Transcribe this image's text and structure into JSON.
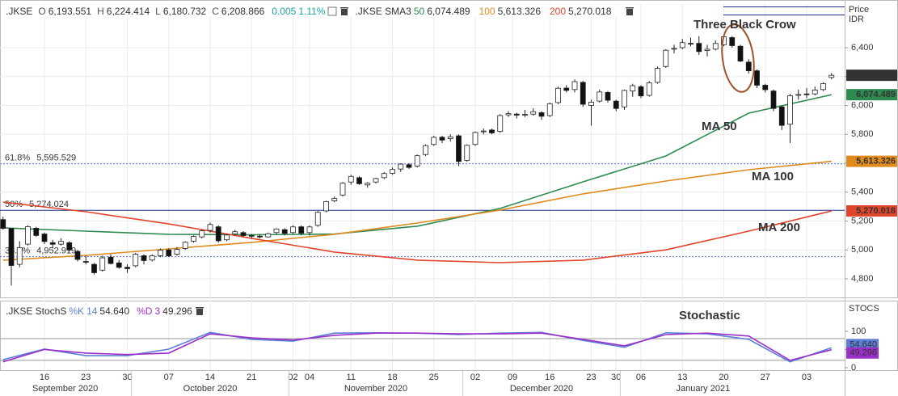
{
  "chart_data": [
    {
      "type": "candlestick",
      "legend": {
        "symbol": ".JKSE",
        "ohlc": [
          {
            "label": "O",
            "value": "6,193.551"
          },
          {
            "label": "H",
            "value": "6,224.414"
          },
          {
            "label": "L",
            "value": "6,180.732"
          },
          {
            "label": "C",
            "value": "6,208.866"
          }
        ],
        "change": "0.005",
        "change_pct": "1.11%",
        "sma_name": ".JKSE SMA3",
        "sma": [
          {
            "period": "50",
            "value": "6,074.489"
          },
          {
            "period": "100",
            "value": "5,613.326"
          },
          {
            "period": "200",
            "value": "5,270.018"
          }
        ]
      },
      "axis_title": [
        "Price",
        "IDR"
      ],
      "annotations": [
        "Three Black Crow"
      ],
      "categories": [
        "2020-09-09",
        "2020-09-10",
        "2020-09-11",
        "2020-09-14",
        "2020-09-15",
        "2020-09-16",
        "2020-09-17",
        "2020-09-18",
        "2020-09-21",
        "2020-09-22",
        "2020-09-23",
        "2020-09-24",
        "2020-09-25",
        "2020-09-28",
        "2020-09-29",
        "2020-09-30",
        "2020-10-01",
        "2020-10-02",
        "2020-10-05",
        "2020-10-06",
        "2020-10-07",
        "2020-10-08",
        "2020-10-09",
        "2020-10-12",
        "2020-10-13",
        "2020-10-14",
        "2020-10-15",
        "2020-10-16",
        "2020-10-19",
        "2020-10-20",
        "2020-10-21",
        "2020-10-22",
        "2020-10-23",
        "2020-10-26",
        "2020-10-27",
        "2020-11-02",
        "2020-11-03",
        "2020-11-04",
        "2020-11-05",
        "2020-11-06",
        "2020-11-09",
        "2020-11-10",
        "2020-11-11",
        "2020-11-12",
        "2020-11-13",
        "2020-11-16",
        "2020-11-17",
        "2020-11-18",
        "2020-11-19",
        "2020-11-20",
        "2020-11-23",
        "2020-11-24",
        "2020-11-25",
        "2020-11-26",
        "2020-11-27",
        "2020-11-30",
        "2020-12-01",
        "2020-12-02",
        "2020-12-03",
        "2020-12-04",
        "2020-12-07",
        "2020-12-08",
        "2020-12-10",
        "2020-12-11",
        "2020-12-14",
        "2020-12-15",
        "2020-12-16",
        "2020-12-17",
        "2020-12-18",
        "2020-12-21",
        "2020-12-22",
        "2020-12-23",
        "2020-12-28",
        "2020-12-29",
        "2020-12-30",
        "2021-01-04",
        "2021-01-05",
        "2021-01-06",
        "2021-01-07",
        "2021-01-08",
        "2021-01-11",
        "2021-01-12",
        "2021-01-13",
        "2021-01-14",
        "2021-01-15",
        "2021-01-18",
        "2021-01-19",
        "2021-01-20",
        "2021-01-21",
        "2021-01-22",
        "2021-01-25",
        "2021-01-26",
        "2021-01-27",
        "2021-01-28",
        "2021-01-29",
        "2021-02-01",
        "2021-02-02",
        "2021-02-03",
        "2021-02-04",
        "2021-02-05",
        "2021-02-08"
      ],
      "ohlc": [
        [
          5210,
          5230,
          5140,
          5149
        ],
        [
          5149,
          5150,
          4754,
          4892
        ],
        [
          4900,
          5060,
          4880,
          5016
        ],
        [
          5040,
          5170,
          5030,
          5161
        ],
        [
          5150,
          5160,
          5090,
          5100
        ],
        [
          5110,
          5120,
          5040,
          5058
        ],
        [
          5050,
          5070,
          5010,
          5039
        ],
        [
          5040,
          5080,
          5030,
          5059
        ],
        [
          5050,
          5060,
          4990,
          4999
        ],
        [
          4990,
          5000,
          4920,
          4934
        ],
        [
          4920,
          4960,
          4900,
          4917
        ],
        [
          4900,
          4910,
          4830,
          4842
        ],
        [
          4860,
          4960,
          4850,
          4945
        ],
        [
          4950,
          4970,
          4900,
          4906
        ],
        [
          4910,
          4930,
          4870,
          4879
        ],
        [
          4880,
          4900,
          4840,
          4870
        ],
        [
          4890,
          4980,
          4880,
          4970
        ],
        [
          4960,
          4970,
          4900,
          4926
        ],
        [
          4930,
          4970,
          4920,
          4959
        ],
        [
          4960,
          5010,
          4950,
          4999
        ],
        [
          5000,
          5010,
          4950,
          4958
        ],
        [
          4970,
          5020,
          4960,
          5004
        ],
        [
          5010,
          5060,
          5000,
          5053
        ],
        [
          5060,
          5100,
          5050,
          5093
        ],
        [
          5090,
          5140,
          5080,
          5132
        ],
        [
          5135,
          5190,
          5120,
          5176
        ],
        [
          5160,
          5170,
          5050,
          5063
        ],
        [
          5070,
          5110,
          5060,
          5103
        ],
        [
          5110,
          5140,
          5100,
          5126
        ],
        [
          5120,
          5130,
          5090,
          5099
        ],
        [
          5100,
          5110,
          5080,
          5096
        ],
        [
          5095,
          5110,
          5080,
          5091
        ],
        [
          5090,
          5120,
          5085,
          5112
        ],
        [
          5120,
          5150,
          5110,
          5145
        ],
        [
          5140,
          5150,
          5100,
          5114
        ],
        [
          5120,
          5170,
          5110,
          5159
        ],
        [
          5160,
          5170,
          5100,
          5115
        ],
        [
          5120,
          5170,
          5100,
          5159
        ],
        [
          5170,
          5270,
          5160,
          5260
        ],
        [
          5270,
          5340,
          5260,
          5335
        ],
        [
          5340,
          5370,
          5330,
          5356
        ],
        [
          5380,
          5470,
          5370,
          5462
        ],
        [
          5470,
          5520,
          5450,
          5509
        ],
        [
          5500,
          5510,
          5450,
          5458
        ],
        [
          5450,
          5470,
          5430,
          5461
        ],
        [
          5470,
          5500,
          5460,
          5494
        ],
        [
          5500,
          5540,
          5490,
          5529
        ],
        [
          5530,
          5570,
          5520,
          5557
        ],
        [
          5560,
          5600,
          5540,
          5594
        ],
        [
          5590,
          5600,
          5560,
          5571
        ],
        [
          5580,
          5660,
          5570,
          5652
        ],
        [
          5660,
          5730,
          5650,
          5722
        ],
        [
          5730,
          5790,
          5720,
          5779
        ],
        [
          5780,
          5790,
          5740,
          5760
        ],
        [
          5770,
          5800,
          5750,
          5783
        ],
        [
          5790,
          5800,
          5580,
          5612
        ],
        [
          5620,
          5730,
          5610,
          5724
        ],
        [
          5730,
          5820,
          5720,
          5813
        ],
        [
          5820,
          5840,
          5800,
          5823
        ],
        [
          5830,
          5840,
          5800,
          5810
        ],
        [
          5820,
          5940,
          5810,
          5930
        ],
        [
          5935,
          5960,
          5920,
          5944
        ],
        [
          5940,
          5950,
          5910,
          5933
        ],
        [
          5935,
          5970,
          5920,
          5938
        ],
        [
          5940,
          5980,
          5930,
          5957
        ],
        [
          5950,
          5960,
          5900,
          5925
        ],
        [
          5930,
          6020,
          5920,
          6012
        ],
        [
          6020,
          6130,
          6010,
          6119
        ],
        [
          6120,
          6140,
          6090,
          6104
        ],
        [
          6110,
          6180,
          6090,
          6165
        ],
        [
          6160,
          6170,
          5990,
          6008
        ],
        [
          6000,
          6040,
          5860,
          6023
        ],
        [
          6030,
          6110,
          6020,
          6093
        ],
        [
          6090,
          6100,
          6020,
          6036
        ],
        [
          6030,
          6040,
          5960,
          5979
        ],
        [
          5990,
          6110,
          5970,
          6104
        ],
        [
          6100,
          6150,
          6060,
          6137
        ],
        [
          6130,
          6140,
          6050,
          6066
        ],
        [
          6070,
          6170,
          6060,
          6157
        ],
        [
          6160,
          6270,
          6150,
          6257
        ],
        [
          6270,
          6390,
          6260,
          6382
        ],
        [
          6390,
          6420,
          6360,
          6395
        ],
        [
          6400,
          6460,
          6390,
          6435
        ],
        [
          6430,
          6470,
          6410,
          6428
        ],
        [
          6430,
          6480,
          6350,
          6373
        ],
        [
          6380,
          6420,
          6340,
          6389
        ],
        [
          6390,
          6450,
          6380,
          6429
        ],
        [
          6420,
          6490,
          6410,
          6475
        ],
        [
          6470,
          6480,
          6400,
          6414
        ],
        [
          6410,
          6420,
          6300,
          6307
        ],
        [
          6300,
          6320,
          6220,
          6240
        ],
        [
          6240,
          6250,
          6120,
          6140
        ],
        [
          6140,
          6150,
          6090,
          6109
        ],
        [
          6100,
          6110,
          5960,
          5979
        ],
        [
          5990,
          6000,
          5830,
          5862
        ],
        [
          5870,
          6080,
          5740,
          6067
        ],
        [
          6070,
          6110,
          6040,
          6076
        ],
        [
          6080,
          6120,
          6050,
          6077
        ],
        [
          6080,
          6130,
          6070,
          6107
        ],
        [
          6110,
          6160,
          6100,
          6151
        ],
        [
          6193.551,
          6224.414,
          6180.732,
          6208.866
        ]
      ],
      "up_color": "#ffffff",
      "down_color": "#111111",
      "ylim": [
        4688,
        6702
      ],
      "yticks": [
        {
          "value": 4800,
          "label": "4,800"
        },
        {
          "value": 5000,
          "label": "5,000"
        },
        {
          "value": 5200,
          "label": "5,200"
        },
        {
          "value": 5400,
          "label": "5,400"
        },
        {
          "value": 5600,
          "label": "5,600"
        },
        {
          "value": 5800,
          "label": "5,800"
        },
        {
          "value": 6000,
          "label": "6,000"
        },
        {
          "value": 6200,
          "label": "6,200"
        },
        {
          "value": 6400,
          "label": "6,400"
        }
      ],
      "xticks": [
        {
          "value": "2020-09-16",
          "label": "16"
        },
        {
          "value": "2020-09-23",
          "label": "23"
        },
        {
          "value": "2020-09-30",
          "label": "30"
        },
        {
          "value": "2020-10-07",
          "label": "07"
        },
        {
          "value": "2020-10-14",
          "label": "14"
        },
        {
          "value": "2020-10-21",
          "label": "21"
        },
        {
          "value": "2020-11-02",
          "label": "02"
        },
        {
          "value": "2020-11-04",
          "label": "04"
        },
        {
          "value": "2020-11-11",
          "label": "11"
        },
        {
          "value": "2020-11-18",
          "label": "18"
        },
        {
          "value": "2020-11-25",
          "label": "25"
        },
        {
          "value": "2020-12-02",
          "label": "02"
        },
        {
          "value": "2020-12-09",
          "label": "09"
        },
        {
          "value": "2020-12-16",
          "label": "16"
        },
        {
          "value": "2020-12-23",
          "label": "23"
        },
        {
          "value": "2020-12-30",
          "label": "30"
        },
        {
          "value": "2021-01-06",
          "label": "06"
        },
        {
          "value": "2021-01-13",
          "label": "13"
        },
        {
          "value": "2021-01-20",
          "label": "20"
        },
        {
          "value": "2021-01-27",
          "label": "27"
        },
        {
          "value": "2021-02-03",
          "label": "03"
        }
      ],
      "months": [
        {
          "value": "2020-09",
          "label": "September 2020"
        },
        {
          "value": "2020-10",
          "label": "October 2020"
        },
        {
          "value": "2020-11",
          "label": "November 2020"
        },
        {
          "value": "2020-12",
          "label": "December 2020"
        },
        {
          "value": "2021-01",
          "label": "January 2021"
        }
      ],
      "grid": true,
      "fib_levels": [
        {
          "label": "61.8%",
          "value": 5595.529,
          "value_label": "5,595.529",
          "line_style": "dotted"
        },
        {
          "label": "50%",
          "value": 5274.024,
          "value_label": "5,274.024",
          "line_style": "solid"
        },
        {
          "label": "38.2%",
          "value": 4952.919,
          "value_label": "4,952.919",
          "line_style": "dotted"
        }
      ],
      "moving_averages": {
        "x": [
          "2020-09-09",
          "2020-09-23",
          "2020-10-07",
          "2020-10-21",
          "2020-11-09",
          "2020-11-23",
          "2020-12-07",
          "2020-12-22",
          "2021-01-11",
          "2021-01-25",
          "2021-02-08"
        ],
        "series": [
          {
            "name": "MA 50",
            "color": "#2e8b50",
            "values": [
              5153,
              5130,
              5108,
              5105,
              5110,
              5164,
              5287,
              5471,
              5650,
              5947,
              6074.489
            ]
          },
          {
            "name": "MA 100",
            "color": "#e08a1e",
            "values": [
              4929,
              4962,
              5007,
              5052,
              5108,
              5186,
              5276,
              5388,
              5477,
              5555,
              5613.326
            ]
          },
          {
            "name": "MA 200",
            "color": "#e0452b",
            "values": [
              5331,
              5264,
              5180,
              5080,
              4985,
              4929,
              4912,
              4929,
              5000,
              5130,
              5270.018
            ]
          }
        ]
      }
    },
    {
      "type": "line",
      "legend": {
        "name": ".JKSE StochS",
        "k_label": "%K",
        "k_period": "14",
        "k_value": "54.640",
        "d_label": "%D",
        "d_period": "3",
        "d_value": "49.296"
      },
      "axis_title": "STOCS",
      "annotations": [
        "Stochastic"
      ],
      "x": [
        "2020-09-09",
        "2020-09-16",
        "2020-09-23",
        "2020-09-30",
        "2020-10-07",
        "2020-10-14",
        "2020-10-21",
        "2020-11-02",
        "2020-11-09",
        "2020-11-16",
        "2020-11-23",
        "2020-11-30",
        "2020-12-07",
        "2020-12-15",
        "2020-12-22",
        "2021-01-04",
        "2021-01-11",
        "2021-01-18",
        "2021-01-25",
        "2021-02-01",
        "2021-02-08"
      ],
      "series": [
        {
          "name": "%K",
          "color": "#5b7fd8",
          "values": [
            22,
            51,
            33,
            33,
            51,
            97,
            78,
            73,
            95,
            96,
            95,
            91,
            95,
            97,
            75,
            56,
            96,
            93,
            78,
            16,
            54.64
          ]
        },
        {
          "name": "%D",
          "color": "#9b2fc9",
          "values": [
            16,
            50,
            40,
            36,
            40,
            93,
            82,
            76,
            89,
            95,
            95,
            93,
            93,
            95,
            78,
            60,
            91,
            95,
            87,
            20,
            49.296
          ]
        }
      ],
      "ylim": [
        -7,
        178
      ],
      "yticks": [
        0,
        50,
        100
      ],
      "levels": [
        20,
        80
      ]
    }
  ]
}
